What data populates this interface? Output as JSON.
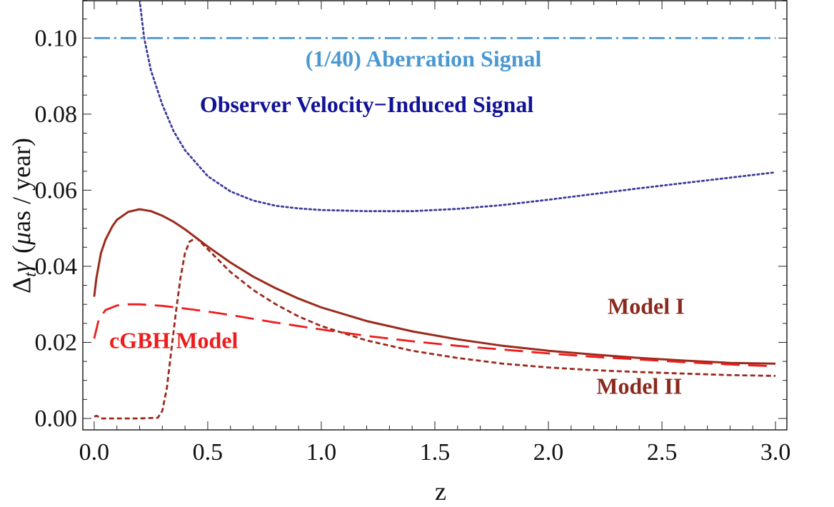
{
  "chart_data": {
    "type": "line",
    "title": "",
    "xlabel": "z",
    "ylabel_parts": {
      "delta": "Δ",
      "sub": "t",
      "gamma": "γ",
      "mu": "μ",
      "rest": "as / year",
      "open": "(",
      "close": ")"
    },
    "xlim": [
      -0.05,
      3.05
    ],
    "ylim": [
      -0.003,
      0.11
    ],
    "x_ticks": [
      0.0,
      0.5,
      1.0,
      1.5,
      2.0,
      2.5,
      3.0
    ],
    "x_tick_labels": [
      "0.0",
      "0.5",
      "1.0",
      "1.5",
      "2.0",
      "2.5",
      "3.0"
    ],
    "y_ticks": [
      0.0,
      0.02,
      0.04,
      0.06,
      0.08,
      0.1
    ],
    "y_tick_labels": [
      "0.00",
      "0.02",
      "0.04",
      "0.06",
      "0.08",
      "0.10"
    ],
    "series": [
      {
        "name": "(1/40) Aberration Signal",
        "color": "#4a98d2",
        "style": "dashdot",
        "x": [
          0.0,
          3.0
        ],
        "y": [
          0.1,
          0.1
        ]
      },
      {
        "name": "Observer Velocity-Induced Signal",
        "color": "#3b3b9b",
        "style": "dotted",
        "x": [
          0.2,
          0.22,
          0.25,
          0.3,
          0.35,
          0.4,
          0.5,
          0.6,
          0.7,
          0.8,
          0.9,
          1.0,
          1.2,
          1.4,
          1.6,
          1.8,
          2.0,
          2.2,
          2.4,
          2.6,
          2.8,
          3.0
        ],
        "y": [
          0.11,
          0.1,
          0.0915,
          0.0825,
          0.0755,
          0.0705,
          0.0637,
          0.0597,
          0.0573,
          0.0559,
          0.0552,
          0.0548,
          0.0545,
          0.0545,
          0.0551,
          0.0561,
          0.0575,
          0.059,
          0.0605,
          0.0619,
          0.0633,
          0.0647
        ]
      },
      {
        "name": "Model I",
        "color": "#9b2a1c",
        "style": "solid",
        "x": [
          0.0,
          0.01,
          0.03,
          0.05,
          0.08,
          0.1,
          0.15,
          0.2,
          0.25,
          0.3,
          0.35,
          0.4,
          0.5,
          0.6,
          0.7,
          0.8,
          0.9,
          1.0,
          1.2,
          1.4,
          1.6,
          1.8,
          2.0,
          2.2,
          2.4,
          2.6,
          2.8,
          3.0
        ],
        "y": [
          0.032,
          0.037,
          0.0435,
          0.047,
          0.0505,
          0.0522,
          0.0543,
          0.055,
          0.0545,
          0.0533,
          0.0517,
          0.0497,
          0.0452,
          0.041,
          0.0373,
          0.0342,
          0.0315,
          0.0292,
          0.0256,
          0.0229,
          0.0208,
          0.0191,
          0.0178,
          0.0168,
          0.0159,
          0.0152,
          0.0146,
          0.0144
        ]
      },
      {
        "name": "Model II",
        "color": "#9b2a1c",
        "style": "dashed",
        "x": [
          0.0,
          0.01,
          0.02,
          0.03,
          0.05,
          0.1,
          0.2,
          0.28,
          0.3,
          0.32,
          0.34,
          0.36,
          0.38,
          0.4,
          0.42,
          0.45,
          0.5,
          0.6,
          0.7,
          0.8,
          0.9,
          1.0,
          1.2,
          1.4,
          1.6,
          1.8,
          2.0,
          2.2,
          2.4,
          2.6,
          2.8,
          3.0
        ],
        "y": [
          0.0005,
          0.0007,
          0.0004,
          0.0,
          0.0,
          0.0,
          0.0,
          0.0002,
          0.002,
          0.008,
          0.018,
          0.028,
          0.037,
          0.0435,
          0.0465,
          0.0475,
          0.0445,
          0.0385,
          0.0338,
          0.03,
          0.0268,
          0.0243,
          0.0205,
          0.0178,
          0.0159,
          0.0144,
          0.0134,
          0.0127,
          0.0122,
          0.0118,
          0.0114,
          0.0112
        ]
      },
      {
        "name": "cGBH Model",
        "color": "#ee1c1c",
        "style": "longdashed",
        "x": [
          0.0,
          0.02,
          0.05,
          0.1,
          0.15,
          0.2,
          0.3,
          0.4,
          0.5,
          0.6,
          0.8,
          1.0,
          1.2,
          1.4,
          1.6,
          1.8,
          2.0,
          2.2,
          2.4,
          2.6,
          2.8,
          3.0
        ],
        "y": [
          0.021,
          0.026,
          0.0285,
          0.0297,
          0.03,
          0.03,
          0.0296,
          0.0289,
          0.0281,
          0.0272,
          0.0252,
          0.0234,
          0.0217,
          0.0203,
          0.0191,
          0.0181,
          0.0171,
          0.0162,
          0.0155,
          0.0148,
          0.0142,
          0.0137
        ]
      }
    ],
    "annotations": [
      {
        "text": "(1/40) Aberration Signal",
        "x": 1.45,
        "y": 0.0925,
        "color": "#4a98d2"
      },
      {
        "text": "Observer Velocity−Induced Signal",
        "x": 1.2,
        "y": 0.0805,
        "color": "#121299"
      },
      {
        "text": "Model I",
        "x": 2.43,
        "y": 0.0275,
        "color": "#8a2a1e"
      },
      {
        "text": "cGBH Model",
        "x": 0.35,
        "y": 0.0185,
        "color": "#ee1c1c"
      },
      {
        "text": "Model II",
        "x": 2.4,
        "y": 0.0065,
        "color": "#8a2a1e"
      }
    ]
  }
}
